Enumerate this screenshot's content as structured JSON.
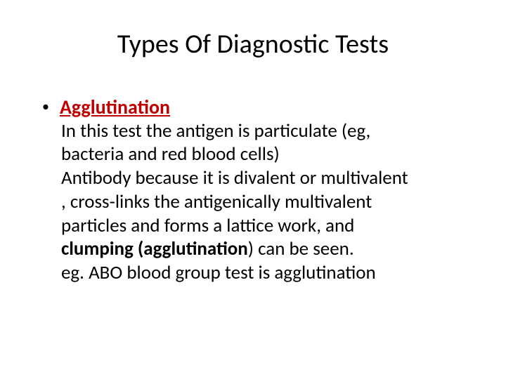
{
  "title": "Types Of Diagnostic Tests",
  "bullet": {
    "marker": "•",
    "heading": "Agglutination"
  },
  "paragraphs": {
    "p1_indent": " In this test the antigen is particulate (eg,",
    "p1_cont": "bacteria and red blood cells)",
    "p2_indent": " Antibody because it is divalent or multivalent",
    "p2_cont1": ", cross-links the antigenically multivalent",
    "p2_cont2_before": "particles  and forms a lattice work, and ",
    "p2_bold": "clumping (agglutination",
    "p2_after": ") can be seen.",
    "p3": "eg. ABO blood group test is agglutination"
  },
  "colors": {
    "heading_color": "#c00000",
    "text_color": "#000000",
    "background": "#ffffff"
  },
  "fonts": {
    "title_size": 38,
    "heading_size": 28,
    "body_size": 27
  }
}
